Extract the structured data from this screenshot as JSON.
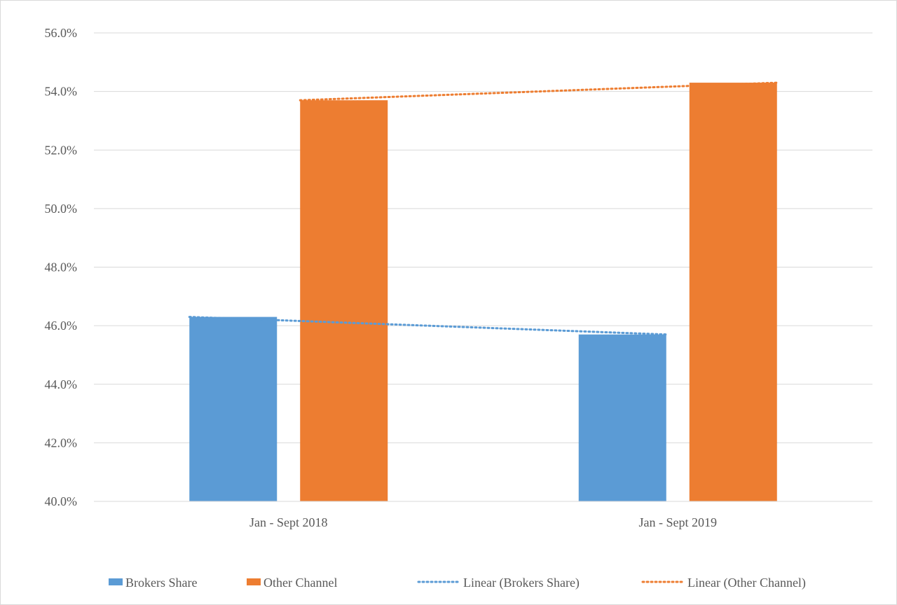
{
  "chart_data": {
    "type": "bar",
    "categories": [
      "Jan - Sept 2018",
      "Jan - Sept 2019"
    ],
    "series": [
      {
        "name": "Brokers Share",
        "values": [
          46.3,
          45.7
        ],
        "color": "#5b9bd5"
      },
      {
        "name": "Other Channel",
        "values": [
          53.7,
          54.3
        ],
        "color": "#ed7d31"
      }
    ],
    "trendlines": [
      {
        "name": "Linear (Brokers Share)",
        "series": "Brokers Share",
        "type": "linear",
        "style": "dotted",
        "color": "#5b9bd5"
      },
      {
        "name": "Linear (Other Channel)",
        "series": "Other Channel",
        "type": "linear",
        "style": "dotted",
        "color": "#ed7d31"
      }
    ],
    "title": "",
    "xlabel": "",
    "ylabel": "",
    "ylim": [
      40,
      56
    ],
    "ytick_step": 2,
    "ytick_labels": [
      "40.0%",
      "42.0%",
      "44.0%",
      "46.0%",
      "48.0%",
      "50.0%",
      "52.0%",
      "54.0%",
      "56.0%"
    ],
    "grid": "horizontal",
    "legend": "bottom",
    "legend_entries": [
      "Brokers Share",
      "Other Channel",
      "Linear (Brokers Share)",
      "Linear (Other Channel)"
    ]
  }
}
